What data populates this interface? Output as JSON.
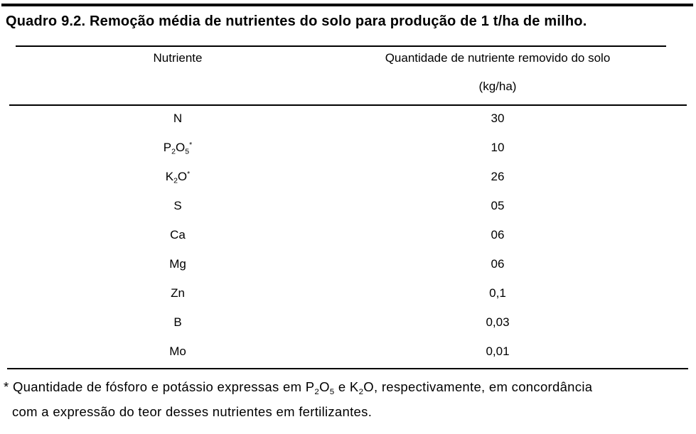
{
  "title": "Quadro 9.2. Remoção média de nutrientes do solo para produção de 1 t/ha de milho.",
  "table": {
    "columns": {
      "nutrient": "Nutriente",
      "quantity_line1": "Quantidade de nutriente removido do solo",
      "quantity_line2": "(kg/ha)"
    },
    "rows": [
      {
        "nutrient": "N",
        "value": "30"
      },
      {
        "nutrient": "P~2~O~5~^*^",
        "value": "10"
      },
      {
        "nutrient": "K~2~O^*^",
        "value": "26"
      },
      {
        "nutrient": "S",
        "value": "05"
      },
      {
        "nutrient": "Ca",
        "value": "06"
      },
      {
        "nutrient": "Mg",
        "value": "06"
      },
      {
        "nutrient": "Zn",
        "value": "0,1"
      },
      {
        "nutrient": "B",
        "value": "0,03"
      },
      {
        "nutrient": "Mo",
        "value": "0,01"
      }
    ]
  },
  "footnote": {
    "line1": "* Quantidade de fósforo e potássio expressas em P~2~O~5~ e K~2~O, respectivamente, em concordância",
    "line2": "com a expressão do teor desses nutrientes em fertilizantes."
  },
  "colors": {
    "background": "#ffffff",
    "text": "#000000",
    "rule": "#000000"
  }
}
